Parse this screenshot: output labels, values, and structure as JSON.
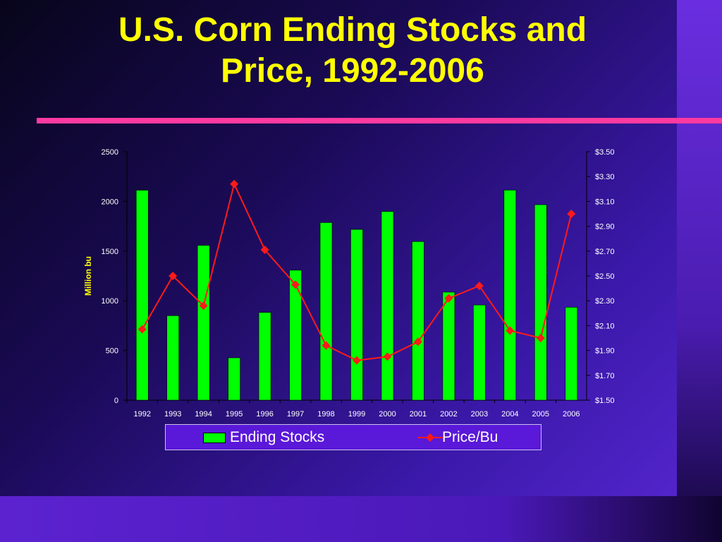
{
  "slide": {
    "title_line1": "U.S. Corn Ending Stocks and",
    "title_line2": "Price, 1992-2006"
  },
  "colors": {
    "title": "#ffff00",
    "rule": "#ff3aa0",
    "bars": "#00ff00",
    "price_line": "#ff1a1a",
    "axis_text": "#ffffff",
    "ylabel": "#ffff00"
  },
  "legend": {
    "placement": "bottom",
    "stocks_label": "Ending Stocks",
    "price_label": "Price/Bu"
  },
  "chart_data": {
    "type": "bar",
    "categories": [
      "1992",
      "1993",
      "1994",
      "1995",
      "1996",
      "1997",
      "1998",
      "1999",
      "2000",
      "2001",
      "2002",
      "2003",
      "2004",
      "2005",
      "2006"
    ],
    "series": [
      {
        "name": "Ending Stocks",
        "axis": "left",
        "type": "bar",
        "values": [
          2113,
          850,
          1558,
          426,
          883,
          1308,
          1787,
          1718,
          1899,
          1596,
          1087,
          958,
          2114,
          1967,
          935
        ]
      },
      {
        "name": "Price/Bu",
        "axis": "right",
        "type": "line",
        "values": [
          2.07,
          2.5,
          2.26,
          3.24,
          2.71,
          2.43,
          1.94,
          1.82,
          1.85,
          1.97,
          2.32,
          2.42,
          2.06,
          2.0,
          3.0
        ]
      }
    ],
    "ylabel": "Million bu",
    "ylim": [
      0,
      2500
    ],
    "yticks": [
      "0",
      "500",
      "1000",
      "1500",
      "2000",
      "2500"
    ],
    "y2lim": [
      1.5,
      3.5
    ],
    "y2ticks": [
      "$1.50",
      "$1.70",
      "$1.90",
      "$2.10",
      "$2.30",
      "$2.50",
      "$2.70",
      "$2.90",
      "$3.10",
      "$3.30",
      "$3.50"
    ],
    "grid": false
  }
}
